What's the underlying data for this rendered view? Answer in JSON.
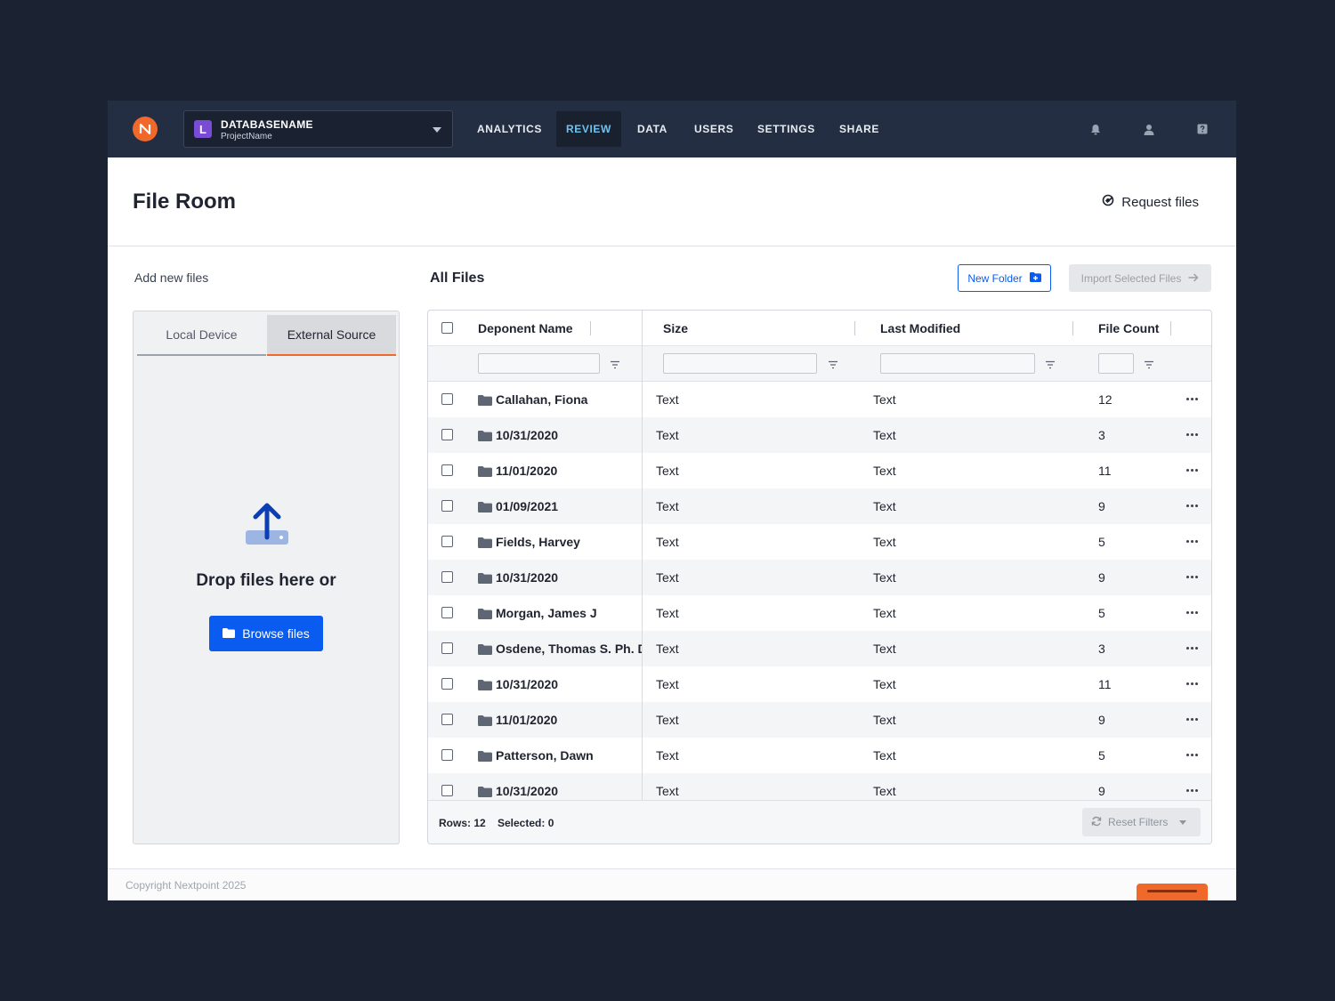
{
  "nav": {
    "database_badge": "L",
    "database_name": "DATABASENAME",
    "project_name": "ProjectName",
    "items": [
      {
        "label": "ANALYTICS"
      },
      {
        "label": "REVIEW"
      },
      {
        "label": "DATA"
      },
      {
        "label": "USERS"
      },
      {
        "label": "SETTINGS"
      },
      {
        "label": "SHARE"
      }
    ],
    "active_item": "REVIEW",
    "icons": [
      "bell-icon",
      "user-icon",
      "help-icon"
    ],
    "colors": {
      "bar": "#232e42",
      "active_text": "#6fc2f0",
      "logo": "#f0692a"
    }
  },
  "header": {
    "title": "File Room",
    "request_label": "Request files"
  },
  "upload": {
    "section_label": "Add new files",
    "tabs": [
      {
        "label": "Local Device"
      },
      {
        "label": "External Source"
      }
    ],
    "active_tab": "External Source",
    "drop_text": "Drop files here or",
    "browse_label": "Browse files"
  },
  "files": {
    "title": "All Files",
    "new_folder_label": "New Folder",
    "import_label": "Import Selected Files",
    "columns": [
      {
        "label": "Deponent Name"
      },
      {
        "label": "Size"
      },
      {
        "label": "Last Modified"
      },
      {
        "label": "File Count"
      }
    ],
    "rows": [
      {
        "name": "Callahan, Fiona",
        "size": "Text",
        "modified": "Text",
        "count": "12"
      },
      {
        "name": "10/31/2020",
        "size": "Text",
        "modified": "Text",
        "count": "3"
      },
      {
        "name": "11/01/2020",
        "size": "Text",
        "modified": "Text",
        "count": "11"
      },
      {
        "name": "01/09/2021",
        "size": "Text",
        "modified": "Text",
        "count": "9"
      },
      {
        "name": "Fields, Harvey",
        "size": "Text",
        "modified": "Text",
        "count": "5"
      },
      {
        "name": "10/31/2020",
        "size": "Text",
        "modified": "Text",
        "count": "9"
      },
      {
        "name": "Morgan, James J",
        "size": "Text",
        "modified": "Text",
        "count": "5"
      },
      {
        "name": "Osdene, Thomas S. Ph. D",
        "size": "Text",
        "modified": "Text",
        "count": "3"
      },
      {
        "name": "10/31/2020",
        "size": "Text",
        "modified": "Text",
        "count": "11"
      },
      {
        "name": "11/01/2020",
        "size": "Text",
        "modified": "Text",
        "count": "9"
      },
      {
        "name": "Patterson, Dawn",
        "size": "Text",
        "modified": "Text",
        "count": "5"
      },
      {
        "name": "10/31/2020",
        "size": "Text",
        "modified": "Text",
        "count": "9"
      }
    ],
    "footer": {
      "rows_text": "Rows: 12",
      "selected_text": "Selected: 0",
      "reset_label": "Reset Filters"
    }
  },
  "footer": {
    "copyright": "Copyright Nextpoint 2025"
  },
  "colors": {
    "primary": "#0a5bf0",
    "accent": "#f0692a",
    "page_bg": "#1b2333"
  }
}
